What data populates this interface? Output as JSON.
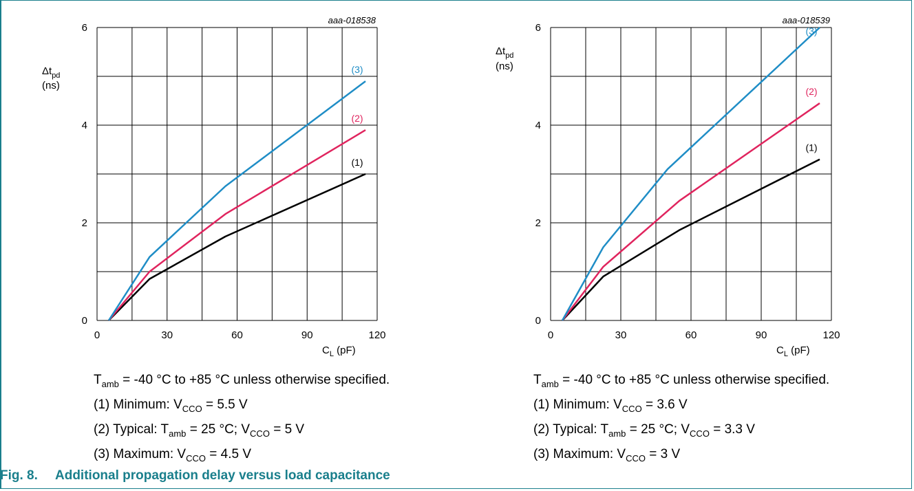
{
  "chart_data": [
    {
      "type": "line",
      "id_label": "aaa-018538",
      "ylabel_lines": [
        "Δt",
        "pd",
        "(ns)"
      ],
      "xlabel_main": "C",
      "xlabel_sub": "L",
      "xlabel_unit": "(pF)",
      "xlim": [
        0,
        120
      ],
      "ylim": [
        0,
        6
      ],
      "xticks": [
        "0",
        "30",
        "60",
        "90",
        "120"
      ],
      "yticks": [
        "0",
        "2",
        "4",
        "6"
      ],
      "grid": true,
      "series": [
        {
          "name": "(1)",
          "color": "#000000",
          "x": [
            5,
            22.5,
            55,
            115
          ],
          "y": [
            0,
            0.85,
            1.72,
            3.0
          ]
        },
        {
          "name": "(2)",
          "color": "#e0245e",
          "x": [
            5,
            22.5,
            55,
            115
          ],
          "y": [
            0,
            1.0,
            2.18,
            3.9
          ]
        },
        {
          "name": "(3)",
          "color": "#1f8dc6",
          "x": [
            5,
            22.5,
            55,
            115
          ],
          "y": [
            0,
            1.3,
            2.75,
            4.9
          ]
        }
      ]
    },
    {
      "type": "line",
      "id_label": "aaa-018539",
      "ylabel_lines": [
        "Δt",
        "pd",
        "(ns)"
      ],
      "xlabel_main": "C",
      "xlabel_sub": "L",
      "xlabel_unit": "(pF)",
      "xlim": [
        0,
        120
      ],
      "ylim": [
        0,
        6
      ],
      "xticks": [
        "0",
        "30",
        "60",
        "90",
        "120"
      ],
      "yticks": [
        "0",
        "2",
        "4",
        "6"
      ],
      "grid": true,
      "series": [
        {
          "name": "(1)",
          "color": "#000000",
          "x": [
            5,
            22.5,
            55,
            115
          ],
          "y": [
            0,
            0.9,
            1.85,
            3.3
          ]
        },
        {
          "name": "(2)",
          "color": "#e0245e",
          "x": [
            5,
            22.5,
            55,
            115
          ],
          "y": [
            0,
            1.1,
            2.45,
            4.45
          ]
        },
        {
          "name": "(3)",
          "color": "#1f8dc6",
          "x": [
            5,
            22.5,
            50,
            115
          ],
          "y": [
            0,
            1.5,
            3.1,
            6.05
          ]
        }
      ]
    }
  ],
  "notes": [
    {
      "line0": {
        "a": "T",
        "b": "amb",
        "c": " = -40 °C to +85 °C unless otherwise specified."
      },
      "line1": {
        "a": "(1) Minimum: V",
        "b": "CCO",
        "c": " = 5.5 V"
      },
      "line2": {
        "a": "(2) Typical: T",
        "b": "amb",
        "c": " = 25 °C; V",
        "d": "CCO",
        "e": " = 5 V"
      },
      "line3": {
        "a": "(3) Maximum: V",
        "b": "CCO",
        "c": " = 4.5 V"
      }
    },
    {
      "line0": {
        "a": "T",
        "b": "amb",
        "c": " = -40 °C to +85 °C unless otherwise specified."
      },
      "line1": {
        "a": "(1) Minimum: V",
        "b": "CCO",
        "c": " = 3.6 V"
      },
      "line2": {
        "a": "(2) Typical: T",
        "b": "amb",
        "c": " = 25 °C; V",
        "d": "CCO",
        "e": " = 3.3 V"
      },
      "line3": {
        "a": "(3) Maximum: V",
        "b": "CCO",
        "c": " = 3 V"
      }
    }
  ],
  "caption": {
    "number": "Fig. 8.",
    "text": "Additional propagation delay versus load capacitance"
  },
  "colors": {
    "accent": "#1a7f8c"
  }
}
